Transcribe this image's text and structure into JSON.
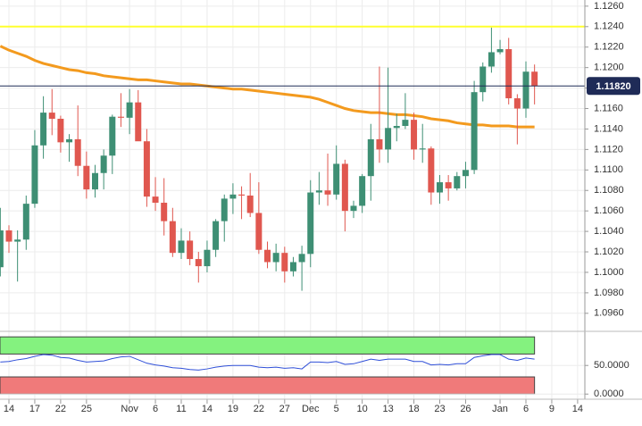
{
  "chart_data": [
    {
      "type": "candlestick",
      "categories": [
        null,
        "14",
        null,
        null,
        "17",
        null,
        null,
        "22",
        null,
        null,
        "25",
        null,
        null,
        null,
        null,
        "Nov",
        null,
        null,
        "6",
        null,
        null,
        "11",
        null,
        null,
        "14",
        null,
        null,
        "19",
        null,
        null,
        "22",
        null,
        null,
        "27",
        null,
        null,
        "Dec",
        null,
        null,
        "5",
        null,
        null,
        "10",
        null,
        null,
        "13",
        null,
        null,
        "18",
        null,
        null,
        "23",
        null,
        null,
        "26",
        null,
        null,
        null,
        "Jan",
        null,
        null,
        "6",
        null,
        null,
        "9",
        null,
        null,
        "14"
      ],
      "ohlc": [
        [
          1.1005,
          1.1063,
          1.0996,
          1.1041
        ],
        [
          1.1041,
          1.1046,
          1.1019,
          1.103
        ],
        [
          1.103,
          1.1041,
          1.0991,
          1.1032
        ],
        [
          1.1032,
          1.1075,
          1.1022,
          1.1067
        ],
        [
          1.1067,
          1.1139,
          1.1063,
          1.1124
        ],
        [
          1.1124,
          1.1172,
          1.1111,
          1.1156
        ],
        [
          1.1156,
          1.1179,
          1.1134,
          1.115
        ],
        [
          1.115,
          1.1153,
          1.1117,
          1.1127
        ],
        [
          1.1127,
          1.1135,
          1.1108,
          1.113
        ],
        [
          1.113,
          1.1163,
          1.1094,
          1.1104
        ],
        [
          1.1104,
          1.1118,
          1.1072,
          1.1081
        ],
        [
          1.1081,
          1.1105,
          1.1073,
          1.1097
        ],
        [
          1.1097,
          1.112,
          1.1081,
          1.1114
        ],
        [
          1.1114,
          1.1154,
          1.1096,
          1.1152
        ],
        [
          1.1152,
          1.1175,
          1.1142,
          1.1151
        ],
        [
          1.1151,
          1.1179,
          1.1135,
          1.1166
        ],
        [
          1.1166,
          1.1178,
          1.1131,
          1.1128
        ],
        [
          1.1128,
          1.114,
          1.1064,
          1.1074
        ],
        [
          1.1074,
          1.1093,
          1.106,
          1.1068
        ],
        [
          1.1068,
          1.1092,
          1.1036,
          1.105
        ],
        [
          1.105,
          1.1063,
          1.1015,
          1.1019
        ],
        [
          1.1019,
          1.1043,
          1.1013,
          1.1031
        ],
        [
          1.1031,
          1.104,
          1.1007,
          1.1013
        ],
        [
          1.1013,
          1.102,
          1.099,
          1.1006
        ],
        [
          1.1006,
          1.1031,
          1.1,
          1.1022
        ],
        [
          1.1022,
          1.1052,
          1.1015,
          1.105
        ],
        [
          1.105,
          1.1076,
          1.103,
          1.1072
        ],
        [
          1.1072,
          1.1087,
          1.1057,
          1.1076
        ],
        [
          1.1076,
          1.1084,
          1.1052,
          1.1075
        ],
        [
          1.1075,
          1.1097,
          1.1054,
          1.1058
        ],
        [
          1.1058,
          1.1088,
          1.1018,
          1.1022
        ],
        [
          1.1022,
          1.103,
          1.1004,
          1.101
        ],
        [
          1.101,
          1.1028,
          1.1001,
          1.1019
        ],
        [
          1.1019,
          1.1025,
          1.099,
          1.1001
        ],
        [
          1.1001,
          1.1015,
          1.0996,
          1.101
        ],
        [
          1.101,
          1.1026,
          1.0982,
          1.1018
        ],
        [
          1.1018,
          1.109,
          1.1005,
          1.1078
        ],
        [
          1.1078,
          1.1098,
          1.1066,
          1.108
        ],
        [
          1.108,
          1.1116,
          1.1065,
          1.1076
        ],
        [
          1.1076,
          1.1124,
          1.1071,
          1.1106
        ],
        [
          1.1106,
          1.111,
          1.104,
          1.106
        ],
        [
          1.106,
          1.107,
          1.1053,
          1.1065
        ],
        [
          1.1065,
          1.1096,
          1.1058,
          1.1094
        ],
        [
          1.1094,
          1.1145,
          1.107,
          1.113
        ],
        [
          1.113,
          1.1201,
          1.1107,
          1.112
        ],
        [
          1.112,
          1.12,
          1.1107,
          1.1141
        ],
        [
          1.1141,
          1.1155,
          1.1128,
          1.1143
        ],
        [
          1.1143,
          1.1175,
          1.114,
          1.1149
        ],
        [
          1.1149,
          1.1156,
          1.111,
          1.112
        ],
        [
          1.112,
          1.1145,
          1.1107,
          1.1121
        ],
        [
          1.1121,
          1.1123,
          1.1066,
          1.1078
        ],
        [
          1.1078,
          1.1095,
          1.1067,
          1.1088
        ],
        [
          1.1088,
          1.1095,
          1.107,
          1.1082
        ],
        [
          1.1082,
          1.1098,
          1.108,
          1.1094
        ],
        [
          1.1094,
          1.1108,
          1.1082,
          1.11
        ],
        [
          1.11,
          1.1187,
          1.1096,
          1.1176
        ],
        [
          1.1176,
          1.1205,
          1.1167,
          1.1201
        ],
        [
          1.1201,
          1.1239,
          1.1195,
          1.1215
        ],
        [
          1.1215,
          1.1227,
          1.1213,
          1.1218
        ],
        [
          1.1218,
          1.1229,
          1.1164,
          1.117
        ],
        [
          1.117,
          1.1174,
          1.1125,
          1.116
        ],
        [
          1.116,
          1.1206,
          1.1151,
          1.1196
        ],
        [
          1.1196,
          1.1203,
          1.1164,
          1.1182
        ],
        null,
        null,
        null,
        null,
        null
      ],
      "up_color": "#3e8f74",
      "down_color": "#e0574f",
      "overlays": [
        {
          "type": "line",
          "color": "#f39a1e",
          "values": [
            1.1221,
            1.1217,
            1.1214,
            1.1211,
            1.1207,
            1.1204,
            1.1202,
            1.12,
            1.1198,
            1.1197,
            1.1195,
            1.1194,
            1.1192,
            1.1191,
            1.119,
            1.1189,
            1.1188,
            1.1188,
            1.1187,
            1.1186,
            1.1185,
            1.1184,
            1.1184,
            1.1183,
            1.1182,
            1.1181,
            1.118,
            1.1179,
            1.1179,
            1.1178,
            1.1177,
            1.1176,
            1.1175,
            1.1174,
            1.1173,
            1.1172,
            1.1171,
            1.1169,
            1.1166,
            1.1163,
            1.116,
            1.1158,
            1.1157,
            1.1156,
            1.1156,
            1.1155,
            1.1154,
            1.1154,
            1.1153,
            1.1152,
            1.115,
            1.1149,
            1.1148,
            1.1146,
            1.1145,
            1.1144,
            1.1144,
            1.1143,
            1.1143,
            1.1143,
            1.1142,
            1.1142,
            1.1142,
            null,
            null,
            null,
            null,
            null
          ]
        }
      ],
      "hlines": [
        {
          "value": 1.124,
          "color": "#ffff2e"
        }
      ],
      "current_price": {
        "value": 1.1182,
        "label": "1.11820",
        "color": "#1f2b57"
      },
      "ylim": [
        1.0945,
        1.1266
      ],
      "yticks": [
        {
          "value": 1.096,
          "label": "1.0960"
        },
        {
          "value": 1.098,
          "label": "1.0980"
        },
        {
          "value": 1.1,
          "label": "1.1000"
        },
        {
          "value": 1.102,
          "label": "1.1020"
        },
        {
          "value": 1.104,
          "label": "1.1040"
        },
        {
          "value": 1.106,
          "label": "1.1060"
        },
        {
          "value": 1.108,
          "label": "1.1080"
        },
        {
          "value": 1.11,
          "label": "1.1100"
        },
        {
          "value": 1.112,
          "label": "1.1120"
        },
        {
          "value": 1.114,
          "label": "1.1140"
        },
        {
          "value": 1.116,
          "label": "1.1160"
        },
        {
          "value": 1.118,
          "label": "1.1180"
        },
        {
          "value": 1.12,
          "label": "1.1200"
        },
        {
          "value": 1.122,
          "label": "1.1220"
        },
        {
          "value": 1.124,
          "label": "1.1240"
        },
        {
          "value": 1.126,
          "label": "1.1260"
        }
      ],
      "grid": true
    },
    {
      "type": "line",
      "values": [
        56,
        57,
        60,
        62,
        66,
        69,
        68,
        64,
        63,
        59,
        56,
        57,
        58,
        62,
        65,
        66,
        60,
        54,
        51,
        49,
        46,
        45,
        43,
        42,
        44,
        47,
        49,
        50,
        50,
        50,
        47,
        46,
        47,
        45,
        46,
        44,
        56,
        56,
        55,
        57,
        52,
        53,
        57,
        61,
        59,
        61,
        61,
        61,
        57,
        57,
        51,
        52,
        51,
        53,
        53,
        64,
        67,
        69,
        69,
        61,
        59,
        63,
        61,
        null,
        null,
        null,
        null,
        null
      ],
      "color": "#2f4fd8",
      "bands": [
        {
          "range": [
            70,
            100
          ],
          "color": "#84f27f"
        },
        {
          "range": [
            0,
            30
          ],
          "color": "#f07a7a"
        }
      ],
      "ylim": [
        -9,
        105
      ],
      "yticks": [
        {
          "value": 50,
          "label": "50.0000"
        },
        {
          "value": 0,
          "label": "0.0000"
        }
      ],
      "grid": true
    }
  ]
}
